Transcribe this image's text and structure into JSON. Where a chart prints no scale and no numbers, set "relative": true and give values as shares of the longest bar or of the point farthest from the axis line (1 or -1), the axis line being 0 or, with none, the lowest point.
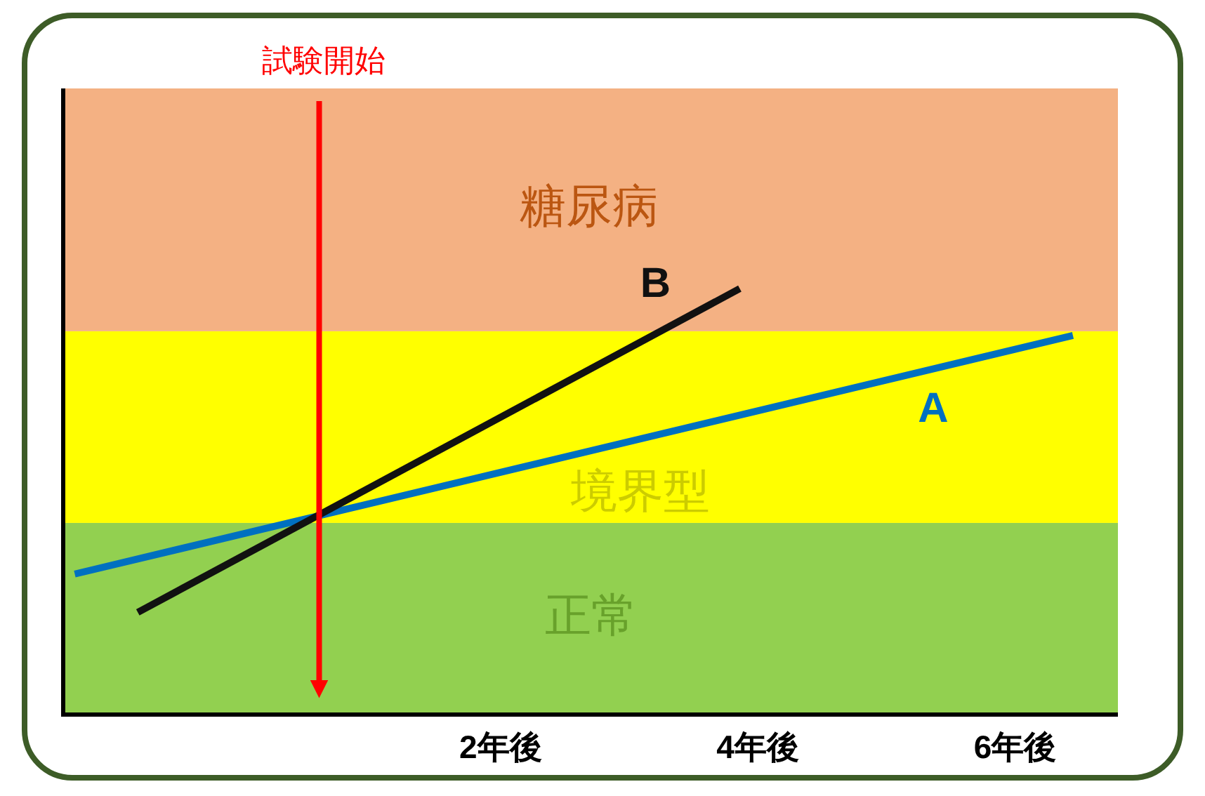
{
  "chart_data": {
    "type": "line",
    "relative": true,
    "tick_labels": "x",
    "xlim": [
      -1.4,
      6.8
    ],
    "xticks": [
      {
        "value": 2,
        "label": "2年後"
      },
      {
        "value": 4,
        "label": "4年後"
      },
      {
        "value": 6,
        "label": "6年後"
      }
    ],
    "series": [
      {
        "name": "A",
        "color": "#0070c0",
        "x": [
          -1.31,
          6.45
        ],
        "values": [
          0.33,
          0.89
        ]
      },
      {
        "name": "B",
        "color": "#111111",
        "x": [
          -0.82,
          3.86
        ],
        "values": [
          0.24,
          1
        ]
      }
    ],
    "bands": [
      {
        "axis": "y",
        "from": 0,
        "to": 0.45,
        "label": "正常",
        "color": "#92d050"
      },
      {
        "axis": "y",
        "from": 0.45,
        "to": 0.9,
        "label": "境界型",
        "color": "#ffff00"
      },
      {
        "axis": "y",
        "from": 0.9,
        "to": 1.47,
        "label": "糖尿病",
        "color": "#f4b183"
      }
    ],
    "ref_lines": [
      {
        "axis": "x",
        "value": 0.59,
        "label": "試験開始",
        "color": "#ff0000"
      }
    ]
  }
}
